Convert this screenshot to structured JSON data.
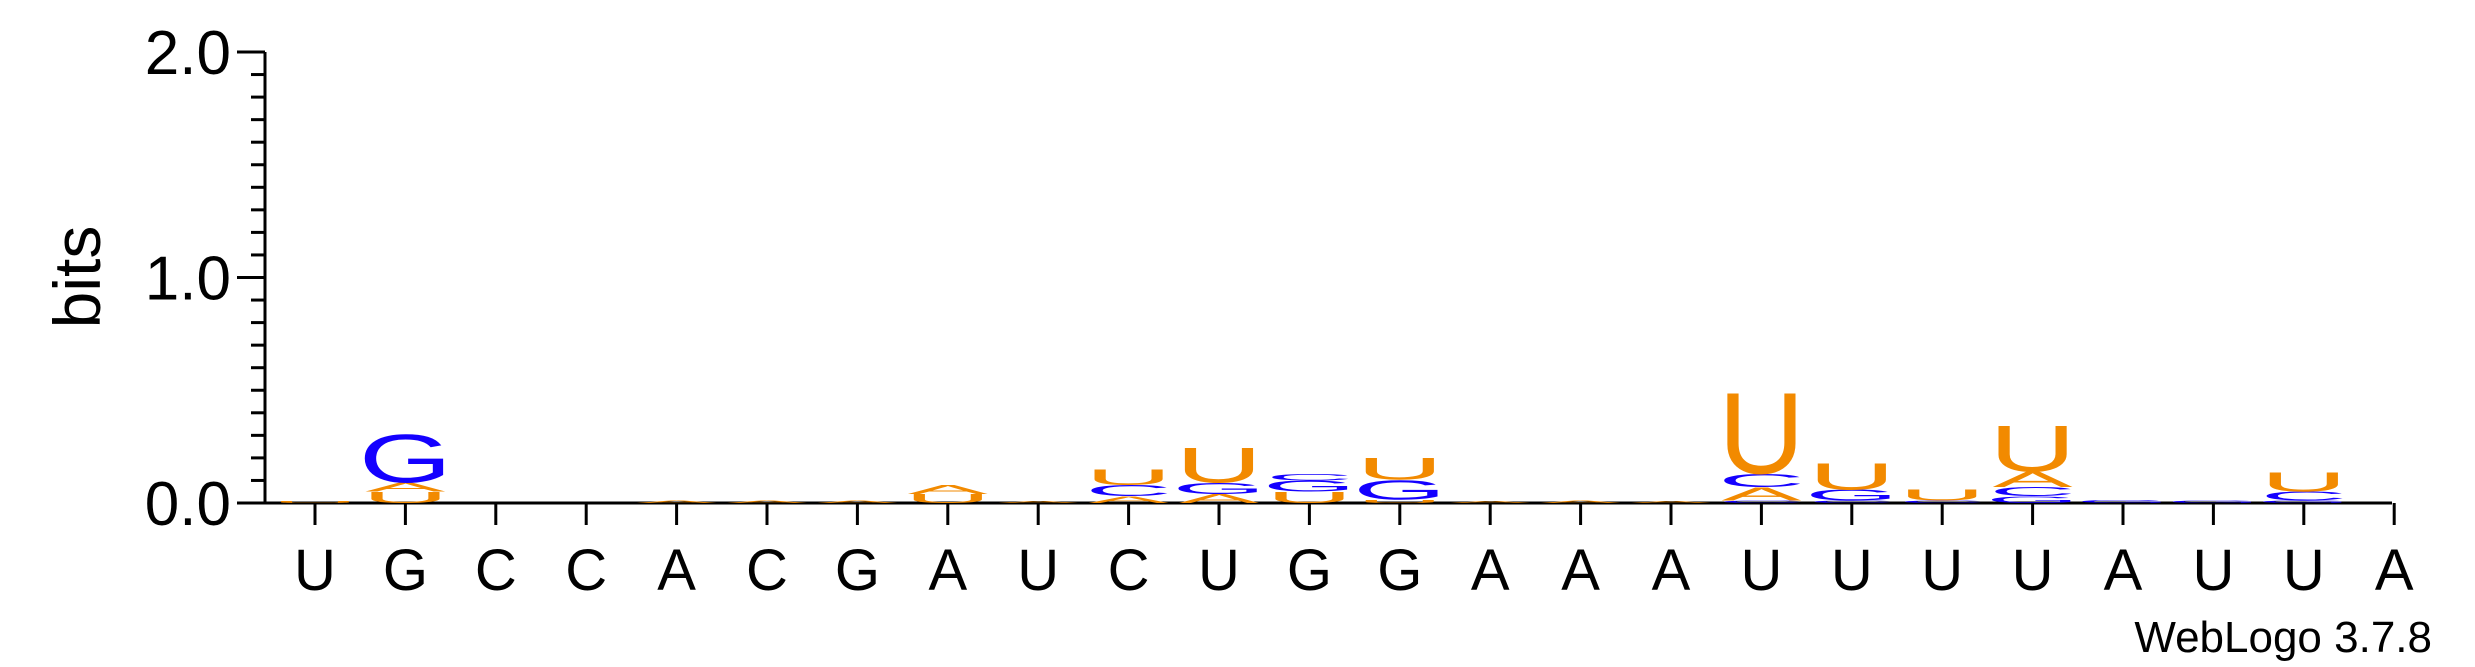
{
  "chart_data": {
    "type": "sequence-logo",
    "ylabel": "bits",
    "ylim": [
      0,
      2.0
    ],
    "yticks": [
      "0.0",
      "1.0",
      "2.0"
    ],
    "footer": "WebLogo 3.7.8",
    "colors": {
      "A": "#f28a00",
      "U": "#f28a00",
      "G": "#1400ff",
      "C": "#1400ff"
    },
    "x_labels": [
      "U",
      "G",
      "C",
      "C",
      "A",
      "C",
      "G",
      "A",
      "U",
      "C",
      "U",
      "G",
      "G",
      "A",
      "A",
      "A",
      "U",
      "U",
      "U",
      "U",
      "A",
      "U",
      "U",
      "A"
    ],
    "stacks": [
      [
        {
          "letter": "U",
          "height": 0.008
        }
      ],
      [
        {
          "letter": "U",
          "height": 0.05
        },
        {
          "letter": "A",
          "height": 0.04
        },
        {
          "letter": "G",
          "height": 0.22
        }
      ],
      [],
      [],
      [
        {
          "letter": "A",
          "height": 0.01
        }
      ],
      [
        {
          "letter": "A",
          "height": 0.012
        }
      ],
      [
        {
          "letter": "A",
          "height": 0.012
        }
      ],
      [
        {
          "letter": "U",
          "height": 0.04
        },
        {
          "letter": "A",
          "height": 0.04
        }
      ],
      [
        {
          "letter": "A",
          "height": 0.008
        }
      ],
      [
        {
          "letter": "A",
          "height": 0.03
        },
        {
          "letter": "C",
          "height": 0.05
        },
        {
          "letter": "U",
          "height": 0.07
        }
      ],
      [
        {
          "letter": "A",
          "height": 0.04
        },
        {
          "letter": "G",
          "height": 0.05
        },
        {
          "letter": "U",
          "height": 0.16
        }
      ],
      [
        {
          "letter": "U",
          "height": 0.05
        },
        {
          "letter": "G",
          "height": 0.05
        },
        {
          "letter": "C",
          "height": 0.03
        }
      ],
      [
        {
          "letter": "U",
          "height": 0.015
        },
        {
          "letter": "G",
          "height": 0.09
        },
        {
          "letter": "U",
          "height": 0.1
        }
      ],
      [
        {
          "letter": "A",
          "height": 0.008
        }
      ],
      [
        {
          "letter": "A",
          "height": 0.01
        }
      ],
      [
        {
          "letter": "A",
          "height": 0.008
        }
      ],
      [
        {
          "letter": "C",
          "height": 0.01
        },
        {
          "letter": "A",
          "height": 0.06
        },
        {
          "letter": "C",
          "height": 0.06
        },
        {
          "letter": "U",
          "height": 0.37
        }
      ],
      [
        {
          "letter": "C",
          "height": 0.01
        },
        {
          "letter": "G",
          "height": 0.05
        },
        {
          "letter": "U",
          "height": 0.12
        }
      ],
      [
        {
          "letter": "C",
          "height": 0.01
        },
        {
          "letter": "U",
          "height": 0.05
        }
      ],
      [
        {
          "letter": "G",
          "height": 0.03
        },
        {
          "letter": "C",
          "height": 0.04
        },
        {
          "letter": "A",
          "height": 0.07
        },
        {
          "letter": "U",
          "height": 0.21
        }
      ],
      [
        {
          "letter": "G",
          "height": 0.015
        }
      ],
      [
        {
          "letter": "G",
          "height": 0.01
        }
      ],
      [
        {
          "letter": "G",
          "height": 0.01
        },
        {
          "letter": "C",
          "height": 0.04
        },
        {
          "letter": "U",
          "height": 0.09
        }
      ],
      []
    ]
  }
}
